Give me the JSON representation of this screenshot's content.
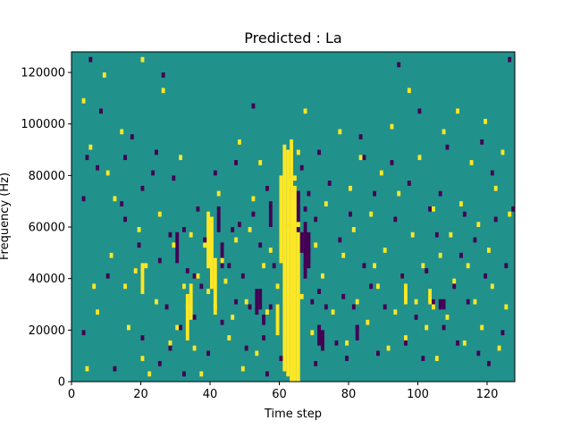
{
  "chart_data": {
    "type": "heatmap",
    "title": "Predicted : La",
    "xlabel": "Time step",
    "ylabel": "Frequency (Hz)",
    "xlim": [
      0,
      128
    ],
    "ylim": [
      0,
      128000
    ],
    "xticks": [
      0,
      20,
      40,
      60,
      80,
      100,
      120
    ],
    "yticks": [
      0,
      20000,
      40000,
      60000,
      80000,
      100000,
      120000
    ],
    "colormap": {
      "low": "#440154",
      "mid": "#21918c",
      "high": "#fde725"
    },
    "background_value": "mid",
    "grid": false,
    "cells_low": [
      [
        3,
        18000
      ],
      [
        3,
        70000
      ],
      [
        4,
        86000
      ],
      [
        5,
        124000
      ],
      [
        7,
        82000
      ],
      [
        8,
        104000
      ],
      [
        10,
        40000
      ],
      [
        12,
        4000
      ],
      [
        14,
        68000
      ],
      [
        15,
        62000
      ],
      [
        15,
        86000
      ],
      [
        17,
        94000
      ],
      [
        19,
        52000
      ],
      [
        20,
        16000
      ],
      [
        20,
        74000
      ],
      [
        23,
        80000
      ],
      [
        24,
        88000
      ],
      [
        25,
        6000
      ],
      [
        25,
        46000
      ],
      [
        26,
        118000
      ],
      [
        27,
        28000
      ],
      [
        28,
        12000
      ],
      [
        28,
        56000
      ],
      [
        29,
        78000
      ],
      [
        31,
        20000
      ],
      [
        32,
        2000
      ],
      [
        32,
        58000
      ],
      [
        33,
        42000
      ],
      [
        35,
        24000
      ],
      [
        35,
        40000
      ],
      [
        36,
        66000
      ],
      [
        37,
        36000
      ],
      [
        38,
        54000
      ],
      [
        39,
        10000
      ],
      [
        41,
        80000
      ],
      [
        42,
        66000
      ],
      [
        43,
        22000
      ],
      [
        45,
        44000
      ],
      [
        46,
        58000
      ],
      [
        47,
        30000
      ],
      [
        47,
        84000
      ],
      [
        48,
        60000
      ],
      [
        49,
        40000
      ],
      [
        50,
        12000
      ],
      [
        51,
        28000
      ],
      [
        52,
        64000
      ],
      [
        52,
        106000
      ],
      [
        53,
        34000
      ],
      [
        54,
        52000
      ],
      [
        55,
        16000
      ],
      [
        56,
        2000
      ],
      [
        56,
        74000
      ],
      [
        57,
        28000
      ],
      [
        58,
        44000
      ],
      [
        60,
        8000
      ],
      [
        65,
        58000
      ],
      [
        66,
        82000
      ],
      [
        67,
        44000
      ],
      [
        67,
        66000
      ],
      [
        68,
        50000
      ],
      [
        68,
        72000
      ],
      [
        69,
        30000
      ],
      [
        70,
        6000
      ],
      [
        70,
        62000
      ],
      [
        71,
        34000
      ],
      [
        71,
        88000
      ],
      [
        72,
        18000
      ],
      [
        73,
        28000
      ],
      [
        74,
        76000
      ],
      [
        76,
        14000
      ],
      [
        77,
        54000
      ],
      [
        78,
        32000
      ],
      [
        79,
        8000
      ],
      [
        80,
        64000
      ],
      [
        81,
        28000
      ],
      [
        82,
        20000
      ],
      [
        83,
        94000
      ],
      [
        84,
        44000
      ],
      [
        84,
        86000
      ],
      [
        86,
        36000
      ],
      [
        87,
        72000
      ],
      [
        88,
        10000
      ],
      [
        90,
        28000
      ],
      [
        92,
        84000
      ],
      [
        93,
        62000
      ],
      [
        94,
        122000
      ],
      [
        95,
        40000
      ],
      [
        96,
        14000
      ],
      [
        97,
        76000
      ],
      [
        99,
        24000
      ],
      [
        100,
        104000
      ],
      [
        101,
        8000
      ],
      [
        102,
        42000
      ],
      [
        103,
        66000
      ],
      [
        104,
        30000
      ],
      [
        105,
        56000
      ],
      [
        106,
        72000
      ],
      [
        107,
        20000
      ],
      [
        108,
        90000
      ],
      [
        110,
        36000
      ],
      [
        111,
        14000
      ],
      [
        112,
        48000
      ],
      [
        113,
        64000
      ],
      [
        114,
        30000
      ],
      [
        116,
        54000
      ],
      [
        117,
        10000
      ],
      [
        118,
        92000
      ],
      [
        119,
        40000
      ],
      [
        120,
        6000
      ],
      [
        121,
        80000
      ],
      [
        122,
        62000
      ],
      [
        124,
        18000
      ],
      [
        125,
        44000
      ],
      [
        126,
        124000
      ],
      [
        127,
        66000
      ]
    ],
    "cells_high": [
      [
        3,
        108000
      ],
      [
        4,
        4000
      ],
      [
        5,
        90000
      ],
      [
        6,
        36000
      ],
      [
        7,
        26000
      ],
      [
        9,
        118000
      ],
      [
        10,
        80000
      ],
      [
        11,
        48000
      ],
      [
        12,
        70000
      ],
      [
        14,
        96000
      ],
      [
        15,
        36000
      ],
      [
        16,
        20000
      ],
      [
        18,
        42000
      ],
      [
        19,
        58000
      ],
      [
        20,
        8000
      ],
      [
        20,
        124000
      ],
      [
        21,
        44000
      ],
      [
        22,
        2000
      ],
      [
        24,
        30000
      ],
      [
        25,
        64000
      ],
      [
        26,
        112000
      ],
      [
        28,
        14000
      ],
      [
        29,
        52000
      ],
      [
        30,
        20000
      ],
      [
        31,
        86000
      ],
      [
        32,
        36000
      ],
      [
        33,
        28000
      ],
      [
        34,
        56000
      ],
      [
        35,
        12000
      ],
      [
        36,
        40000
      ],
      [
        37,
        2000
      ],
      [
        38,
        52000
      ],
      [
        39,
        34000
      ],
      [
        40,
        62000
      ],
      [
        41,
        28000
      ],
      [
        42,
        72000
      ],
      [
        43,
        46000
      ],
      [
        44,
        38000
      ],
      [
        45,
        16000
      ],
      [
        46,
        24000
      ],
      [
        47,
        54000
      ],
      [
        48,
        92000
      ],
      [
        49,
        4000
      ],
      [
        50,
        30000
      ],
      [
        51,
        58000
      ],
      [
        52,
        70000
      ],
      [
        53,
        10000
      ],
      [
        54,
        84000
      ],
      [
        55,
        44000
      ],
      [
        56,
        26000
      ],
      [
        57,
        50000
      ],
      [
        59,
        36000
      ],
      [
        62,
        58000
      ],
      [
        64,
        78000
      ],
      [
        65,
        88000
      ],
      [
        66,
        32000
      ],
      [
        67,
        104000
      ],
      [
        69,
        18000
      ],
      [
        70,
        52000
      ],
      [
        72,
        40000
      ],
      [
        73,
        68000
      ],
      [
        75,
        26000
      ],
      [
        77,
        96000
      ],
      [
        78,
        48000
      ],
      [
        79,
        14000
      ],
      [
        80,
        74000
      ],
      [
        81,
        58000
      ],
      [
        82,
        30000
      ],
      [
        83,
        86000
      ],
      [
        85,
        22000
      ],
      [
        86,
        64000
      ],
      [
        87,
        44000
      ],
      [
        88,
        36000
      ],
      [
        89,
        80000
      ],
      [
        90,
        50000
      ],
      [
        91,
        12000
      ],
      [
        92,
        98000
      ],
      [
        93,
        26000
      ],
      [
        94,
        72000
      ],
      [
        95,
        40000
      ],
      [
        96,
        16000
      ],
      [
        97,
        112000
      ],
      [
        98,
        56000
      ],
      [
        99,
        30000
      ],
      [
        100,
        86000
      ],
      [
        101,
        44000
      ],
      [
        102,
        20000
      ],
      [
        103,
        34000
      ],
      [
        104,
        66000
      ],
      [
        105,
        8000
      ],
      [
        106,
        48000
      ],
      [
        107,
        96000
      ],
      [
        108,
        24000
      ],
      [
        109,
        56000
      ],
      [
        110,
        38000
      ],
      [
        111,
        104000
      ],
      [
        112,
        68000
      ],
      [
        113,
        14000
      ],
      [
        114,
        44000
      ],
      [
        115,
        84000
      ],
      [
        116,
        30000
      ],
      [
        117,
        60000
      ],
      [
        118,
        20000
      ],
      [
        119,
        100000
      ],
      [
        120,
        50000
      ],
      [
        121,
        36000
      ],
      [
        122,
        74000
      ],
      [
        123,
        12000
      ],
      [
        124,
        88000
      ],
      [
        125,
        28000
      ],
      [
        126,
        64000
      ]
    ],
    "bands_high": [
      [
        39,
        44000,
        66000
      ],
      [
        40,
        36000,
        62000
      ],
      [
        41,
        26000,
        48000
      ],
      [
        61,
        4000,
        92000
      ],
      [
        62,
        2000,
        90000
      ],
      [
        63,
        0,
        94000
      ],
      [
        64,
        0,
        76000
      ],
      [
        60,
        46000,
        80000
      ],
      [
        65,
        0,
        62000
      ],
      [
        59,
        18000,
        30000
      ],
      [
        33,
        16000,
        34000
      ],
      [
        34,
        24000,
        38000
      ],
      [
        20,
        34000,
        46000
      ],
      [
        96,
        30000,
        38000
      ],
      [
        103,
        30000,
        34000
      ],
      [
        104,
        28000,
        32000
      ]
    ],
    "bands_low": [
      [
        67,
        40000,
        62000
      ],
      [
        68,
        44000,
        58000
      ],
      [
        65,
        62000,
        74000
      ],
      [
        66,
        50000,
        58000
      ],
      [
        53,
        26000,
        34000
      ],
      [
        54,
        28000,
        36000
      ],
      [
        55,
        22000,
        26000
      ],
      [
        42,
        58000,
        66000
      ],
      [
        43,
        44000,
        54000
      ],
      [
        30,
        46000,
        58000
      ],
      [
        71,
        14000,
        22000
      ],
      [
        72,
        12000,
        18000
      ],
      [
        82,
        16000,
        22000
      ],
      [
        57,
        60000,
        70000
      ],
      [
        106,
        28000,
        32000
      ],
      [
        107,
        28000,
        32000
      ]
    ]
  }
}
